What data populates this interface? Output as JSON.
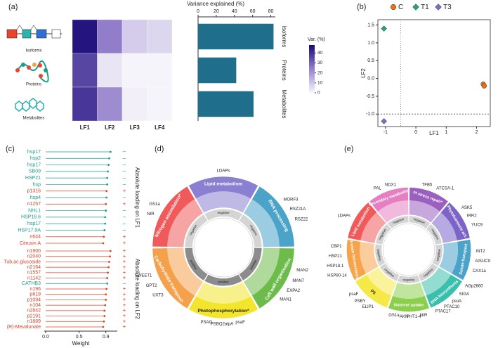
{
  "panel_labels": [
    "(a)",
    "(b)",
    "(c)",
    "(d)",
    "(e)"
  ],
  "chart_data": [
    {
      "type": "heatmap",
      "x_categories": [
        "LF1",
        "LF2",
        "LF3",
        "LF4"
      ],
      "y_categories": [
        "Isoforms",
        "Proteins",
        "Metabolites"
      ],
      "values": [
        [
          46,
          25,
          9,
          7
        ],
        [
          36,
          4,
          1,
          1
        ],
        [
          39,
          22,
          2,
          1
        ]
      ],
      "colorbar_title": "Var. (%)",
      "clim": [
        0,
        48
      ],
      "cticks": [
        0,
        10,
        20,
        30,
        40
      ]
    },
    {
      "type": "bar",
      "orientation": "horizontal",
      "title": "Variance explained (%)",
      "categories": [
        "Isoforms",
        "Proteins",
        "Metabolites"
      ],
      "values": [
        83,
        42,
        61
      ],
      "color": "#1f6e8c",
      "xlim": [
        0,
        85
      ],
      "xticks": [
        0,
        20,
        40,
        60,
        80
      ]
    },
    {
      "type": "scatter",
      "xlabel": "LF1",
      "ylabel": "LF2",
      "xlim": [
        -1.25,
        2.45
      ],
      "ylim": [
        -1.35,
        1.65
      ],
      "xticks": [
        -1,
        0,
        1,
        2
      ],
      "yticks": [
        {
          "value": -1,
          "label": "-1.0"
        },
        {
          "value": -0.5,
          "label": "-0.5"
        },
        {
          "value": 0,
          "label": "0.0"
        },
        {
          "value": 0.5,
          "label": "0.5"
        },
        {
          "value": 1,
          "label": "1.0"
        },
        {
          "value": 1.5,
          "label": "1.5"
        }
      ],
      "reference_lines": {
        "x": -0.5,
        "y": -1
      },
      "series": [
        {
          "name": "C",
          "color": "#e8711a",
          "marker": "circle",
          "x": [
            2.22,
            2.25
          ],
          "values": [
            -0.16,
            -0.21
          ]
        },
        {
          "name": "T1",
          "color": "#2aa37a",
          "marker": "diamond",
          "x": [
            -1.05
          ],
          "values": [
            1.4
          ]
        },
        {
          "name": "T3",
          "color": "#7f6bc2",
          "marker": "diamond",
          "x": [
            -1.05
          ],
          "values": [
            -1.2
          ]
        }
      ]
    },
    {
      "type": "lollipop",
      "ylabel": "Absolute loading on LF1",
      "xlim": [
        0,
        1.05
      ],
      "categories": [
        "hsp17",
        "hsp2",
        "hsp17",
        "SB09",
        "HSP21",
        "hsp",
        "p1316",
        "hsp4",
        "n1257",
        "NHL1",
        "HSP18.6",
        "hsp17",
        "HSP17.9A",
        "n644",
        "Citrusin A"
      ],
      "values": [
        0.97,
        0.95,
        0.94,
        0.93,
        0.92,
        0.92,
        0.91,
        0.91,
        0.9,
        0.9,
        0.89,
        0.89,
        0.88,
        0.87,
        0.86
      ],
      "colors": [
        "#1a9e8a",
        "#1a9e8a",
        "#1a9e8a",
        "#1a9e8a",
        "#1a9e8a",
        "#1a9e8a",
        "#e0402a",
        "#1a9e8a",
        "#e0402a",
        "#1a9e8a",
        "#1a9e8a",
        "#1a9e8a",
        "#1a9e8a",
        "#e0402a",
        "#e0402a"
      ],
      "signs": [
        "–",
        "–",
        "–",
        "–",
        "–",
        "–",
        "+",
        "–",
        "+",
        "–",
        "–",
        "–",
        "–",
        "+",
        "+"
      ]
    },
    {
      "type": "lollipop",
      "ylabel": "Absolute loading on LF2",
      "xlabel": "Weight",
      "xlim": [
        0,
        1.05
      ],
      "xticks": [
        {
          "value": 0,
          "label": "0.0"
        },
        {
          "value": 0.5,
          "label": "0.5"
        },
        0.9
      ],
      "categories": [
        "n1900",
        "n2040",
        "Tub.ac.glucoside",
        "n2164",
        "n1557",
        "n1142",
        "CATHB3",
        "n196",
        "p819",
        "p1094",
        "n104",
        "n2842",
        "p2191",
        "n1889",
        "(R)-Mevalonate"
      ],
      "values": [
        0.97,
        0.96,
        0.95,
        0.94,
        0.93,
        0.92,
        0.92,
        0.91,
        0.9,
        0.9,
        0.89,
        0.88,
        0.88,
        0.87,
        0.86
      ],
      "colors": [
        "#e0402a",
        "#e0402a",
        "#e0402a",
        "#e0402a",
        "#e0402a",
        "#e0402a",
        "#1a9e8a",
        "#e0402a",
        "#e0402a",
        "#e0402a",
        "#e0402a",
        "#e0402a",
        "#e0402a",
        "#e0402a",
        "#e0402a"
      ],
      "signs": [
        "+",
        "+",
        "+",
        "+",
        "+",
        "+",
        "–",
        "+",
        "+",
        "+",
        "+",
        "+",
        "+",
        "+",
        "+"
      ]
    }
  ],
  "diagrams": [
    {
      "segments": [
        {
          "label": "Lipid metabolism",
          "color": "#8a7fd0",
          "direction": "negative",
          "genes": [
            "LDAPs"
          ]
        },
        {
          "label": "RNA processing",
          "color": "#4ba3c9",
          "direction": "negative",
          "genes": [
            "MORF3",
            "RSZ21A",
            "RSZ22"
          ]
        },
        {
          "label": "Cell wall organisation",
          "color": "#6dbb4a",
          "direction": "positive",
          "genes": [
            "MAN2",
            "MAN7",
            "EXPA2",
            "MAN1"
          ]
        },
        {
          "label": "Photophosphorylation*",
          "color": "#f2e52b",
          "direction": "positive",
          "genes": [
            "psaF",
            "atpA",
            "PSBQ2",
            "PSAG"
          ]
        },
        {
          "label": "Carbohydrate transport*",
          "color": "#f5a04a",
          "direction": "positive",
          "genes": [
            "UXT3",
            "GPT2",
            "SWEET1"
          ]
        },
        {
          "label": "Nitrogen assimilation*",
          "color": "#f15a5a",
          "direction": "negative",
          "genes": [
            "NIR",
            "GS1a"
          ]
        }
      ]
    },
    {
      "segments": [
        {
          "label": "Lipid metabolism",
          "color": "#f15a5a",
          "direction": "negative",
          "genes": [
            "LDAPs"
          ]
        },
        {
          "label": "Secondary metabolism",
          "color": "#e67fc2",
          "direction": "negative",
          "genes": [
            "PAL",
            "NDX1"
          ]
        },
        {
          "label": "nt stress repair*",
          "color": "#9b5fc0",
          "direction": "negative",
          "genes": [
            "TFB5",
            "ATCSA-1"
          ]
        },
        {
          "label": "Phytohormone act.",
          "color": "#7b63c8",
          "direction": "negative",
          "genes": [
            "ASK5",
            "IRR2",
            "YUC9"
          ]
        },
        {
          "label": "Solute transport",
          "color": "#4ba3c9",
          "direction": "negative",
          "genes": [
            "INT2",
            "AtSUC9",
            "CAX1a"
          ]
        },
        {
          "label": "RNA biosynthesis",
          "color": "#3bbfad",
          "direction": "negative",
          "genes": [
            "AGp2660",
            "SIGA",
            "psoA",
            "PTAC10",
            "PTAC17"
          ]
        },
        {
          "label": "Nutrient uptake",
          "color": "#8ccf4f",
          "direction": "negative",
          "genes": [
            "NIR",
            "PHT1-4",
            "AKN",
            "GS1a"
          ]
        },
        {
          "label": "PS",
          "color": "#f5e948",
          "direction": "negative",
          "genes": [
            "ELIP1",
            "PSBY",
            "psaF"
          ]
        },
        {
          "label": "Protein homeostasis",
          "color": "#f7a34a",
          "direction": "negative",
          "genes": [
            "HSP90-14",
            "HSP18.1",
            "HSP21",
            "CBP1"
          ]
        }
      ]
    }
  ]
}
